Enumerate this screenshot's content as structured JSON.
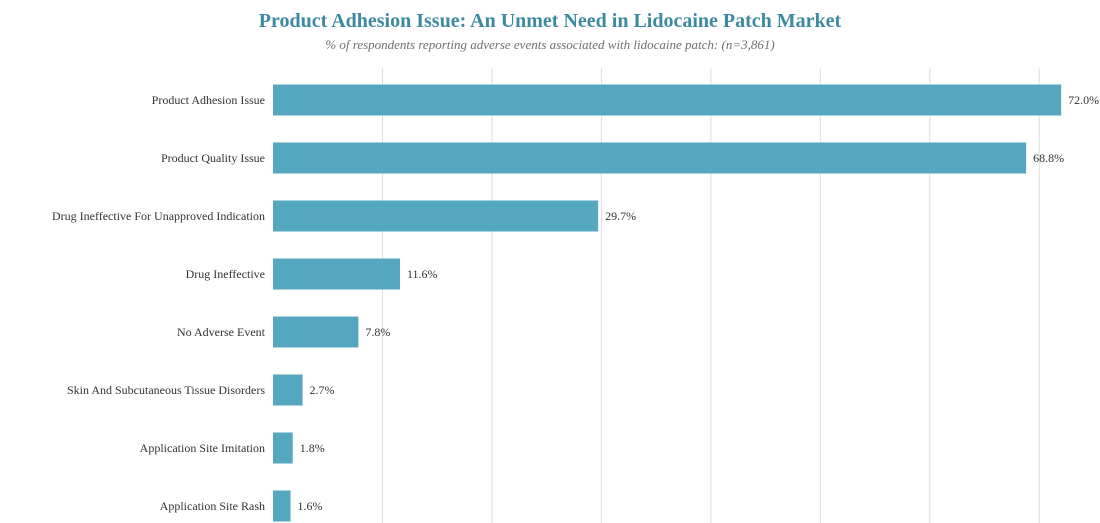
{
  "chart_data": {
    "type": "bar",
    "orientation": "horizontal",
    "title": "Product Adhesion Issue: An Unmet Need in Lidocaine Patch Market",
    "subtitle": "% of respondents reporting adverse events associated with lidocaine patch: (n=3,861)",
    "categories": [
      "Product Adhesion Issue",
      "Product Quality Issue",
      "Drug Ineffective For Unapproved Indication",
      "Drug Ineffective",
      "No Adverse Event",
      "Skin And Subcutaneous Tissue Disorders",
      "Application Site Imitation",
      "Application Site Rash"
    ],
    "values": [
      72.0,
      68.8,
      29.7,
      11.6,
      7.8,
      2.7,
      1.8,
      1.6
    ],
    "value_labels": [
      "72.0%",
      "68.8%",
      "29.7%",
      "11.6%",
      "7.8%",
      "2.7%",
      "1.8%",
      "1.6%"
    ],
    "xlim": [
      0,
      75
    ],
    "grid": "vertical",
    "bar_color": "#55a7c0"
  }
}
